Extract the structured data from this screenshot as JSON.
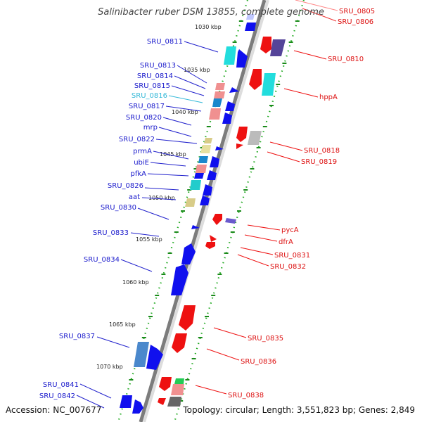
{
  "title": "Salinibacter ruber DSM 13855, complete genome",
  "accession": "Accession: NC_007677",
  "topology": "Topology: circular; Length: 3,551,823 bp; Genes: 2,849",
  "kbp_labels": [
    {
      "text": "1030 kbp",
      "pos": 1030
    },
    {
      "text": "1035 kbp",
      "pos": 1035
    },
    {
      "text": "1040 kbp",
      "pos": 1040
    },
    {
      "text": "1045 kbp",
      "pos": 1045
    },
    {
      "text": "1050 kbp",
      "pos": 1050
    },
    {
      "text": "1055 kbp",
      "pos": 1055
    },
    {
      "text": "1060 kbp",
      "pos": 1060
    },
    {
      "text": "1065 kbp",
      "pos": 1065
    },
    {
      "text": "1070 kbp",
      "pos": 1070
    }
  ],
  "left_labels": [
    {
      "text": "SRU_0811",
      "color": "#1a1acc"
    },
    {
      "text": "SRU_0813",
      "color": "#1a1acc"
    },
    {
      "text": "SRU_0814",
      "color": "#1a1acc"
    },
    {
      "text": "SRU_0815",
      "color": "#1a1acc"
    },
    {
      "text": "SRU_0816",
      "color": "#33b8d8"
    },
    {
      "text": "SRU_0817",
      "color": "#1a1acc"
    },
    {
      "text": "SRU_0820",
      "color": "#1a1acc"
    },
    {
      "text": "mrp",
      "color": "#1a1acc"
    },
    {
      "text": "SRU_0822",
      "color": "#1a1acc"
    },
    {
      "text": "prmA",
      "color": "#1a1acc"
    },
    {
      "text": "ubiE",
      "color": "#1a1acc"
    },
    {
      "text": "pfkA",
      "color": "#1a1acc"
    },
    {
      "text": "SRU_0826",
      "color": "#1a1acc"
    },
    {
      "text": "aat",
      "color": "#1a1acc"
    },
    {
      "text": "SRU_0830",
      "color": "#1a1acc"
    },
    {
      "text": "SRU_0833",
      "color": "#1a1acc"
    },
    {
      "text": "SRU_0834",
      "color": "#1a1acc"
    },
    {
      "text": "SRU_0837",
      "color": "#1a1acc"
    },
    {
      "text": "SRU_0841",
      "color": "#1a1acc"
    },
    {
      "text": "SRU_0842",
      "color": "#1a1acc"
    }
  ],
  "right_labels": [
    {
      "text": "SRU_0805",
      "color": "#dd1111"
    },
    {
      "text": "SRU_0806",
      "color": "#dd1111"
    },
    {
      "text": "SRU_0810",
      "color": "#dd1111"
    },
    {
      "text": "hppA",
      "color": "#dd1111"
    },
    {
      "text": "SRU_0818",
      "color": "#dd1111"
    },
    {
      "text": "SRU_0819",
      "color": "#dd1111"
    },
    {
      "text": "pycA",
      "color": "#dd1111"
    },
    {
      "text": "dfrA",
      "color": "#dd1111"
    },
    {
      "text": "SRU_0831",
      "color": "#dd1111"
    },
    {
      "text": "SRU_0832",
      "color": "#dd1111"
    },
    {
      "text": "SRU_0835",
      "color": "#dd1111"
    },
    {
      "text": "SRU_0836",
      "color": "#dd1111"
    },
    {
      "text": "SRU_0838",
      "color": "#dd1111"
    }
  ],
  "colors": {
    "forward_strand": "#1010ee",
    "reverse_strand": "#ee1111",
    "cyan_gene": "#22dddd",
    "pink_gene": "#f09090",
    "khaki_gene": "#d8cc88",
    "gray_gene": "#aaaaaa",
    "backbone": "#8a8a8a",
    "dotted_track": "#22aa22"
  }
}
